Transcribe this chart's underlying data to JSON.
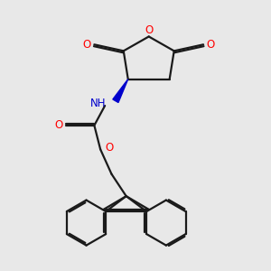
{
  "bg_color": "#e8e8e8",
  "bond_color": "#1a1a1a",
  "oxygen_color": "#ff0000",
  "nitrogen_color": "#0000cc",
  "line_width": 1.6,
  "xlim": [
    0,
    10
  ],
  "ylim": [
    0,
    10
  ]
}
